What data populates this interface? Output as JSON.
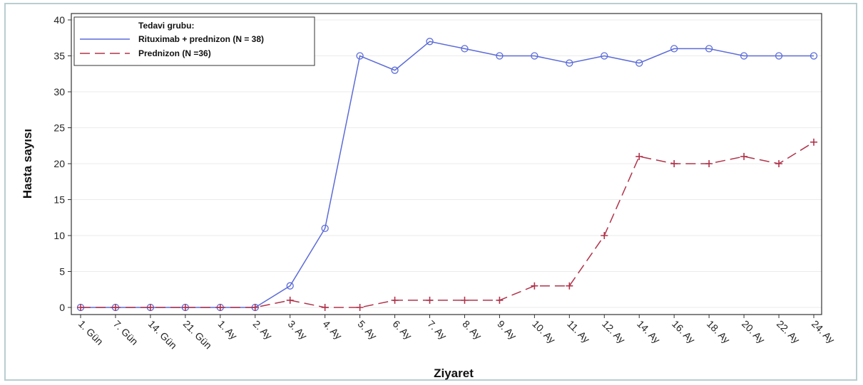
{
  "chart_data": {
    "type": "line",
    "xlabel": "Ziyaret",
    "ylabel": "Hasta sayısı",
    "ylim": [
      0,
      40
    ],
    "yticks": [
      0,
      5,
      10,
      15,
      20,
      25,
      30,
      35,
      40
    ],
    "grid": "horizontal",
    "categories": [
      "1. Gün",
      "7. Gün",
      "14. Gün",
      "21. Gün",
      "1. Ay",
      "2. Ay",
      "3. Ay",
      "4. Ay",
      "5. Ay",
      "6. Ay",
      "7. Ay",
      "8. Ay",
      "9. Ay",
      "10. Ay",
      "11. Ay",
      "12. Ay",
      "14. Ay",
      "16. Ay",
      "18. Ay",
      "20. Ay",
      "22. Ay",
      "24. Ay"
    ],
    "legend": {
      "title": "Tedavi grubu:",
      "placement": "top-left"
    },
    "series": [
      {
        "name": "Rituximab + prednizon (N = 38)",
        "color": "#5b6bd8",
        "line_style": "solid",
        "marker": "circle",
        "values": [
          0,
          0,
          0,
          0,
          0,
          0,
          3,
          11,
          35,
          33,
          37,
          36,
          35,
          35,
          34,
          35,
          34,
          36,
          36,
          35,
          35,
          35
        ]
      },
      {
        "name": "Prednizon (N =36)",
        "color": "#b0334a",
        "line_style": "dashed",
        "marker": "plus",
        "values": [
          0,
          0,
          0,
          0,
          0,
          0,
          1,
          0,
          0,
          1,
          1,
          1,
          1,
          3,
          3,
          10,
          21,
          20,
          20,
          21,
          20,
          23
        ]
      }
    ]
  }
}
